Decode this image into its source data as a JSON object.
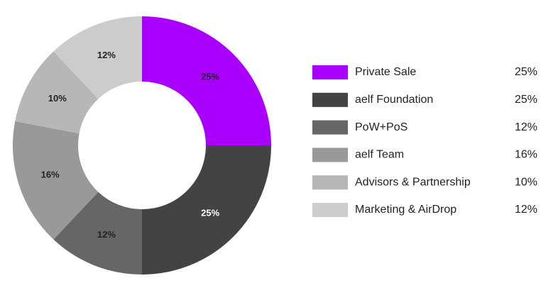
{
  "chart_data": {
    "type": "donut",
    "categories": [
      "Private Sale",
      "aelf Foundation",
      "PoW+PoS",
      "aelf Team",
      "Advisors & Partnership",
      "Marketing & AirDrop"
    ],
    "values": [
      25,
      25,
      12,
      16,
      10,
      12
    ],
    "value_labels": [
      "25%",
      "25%",
      "12%",
      "16%",
      "10%",
      "12%"
    ],
    "colors": [
      "#aa00ff",
      "#434343",
      "#666666",
      "#999999",
      "#b7b7b7",
      "#cccccc"
    ],
    "legend": "right"
  }
}
